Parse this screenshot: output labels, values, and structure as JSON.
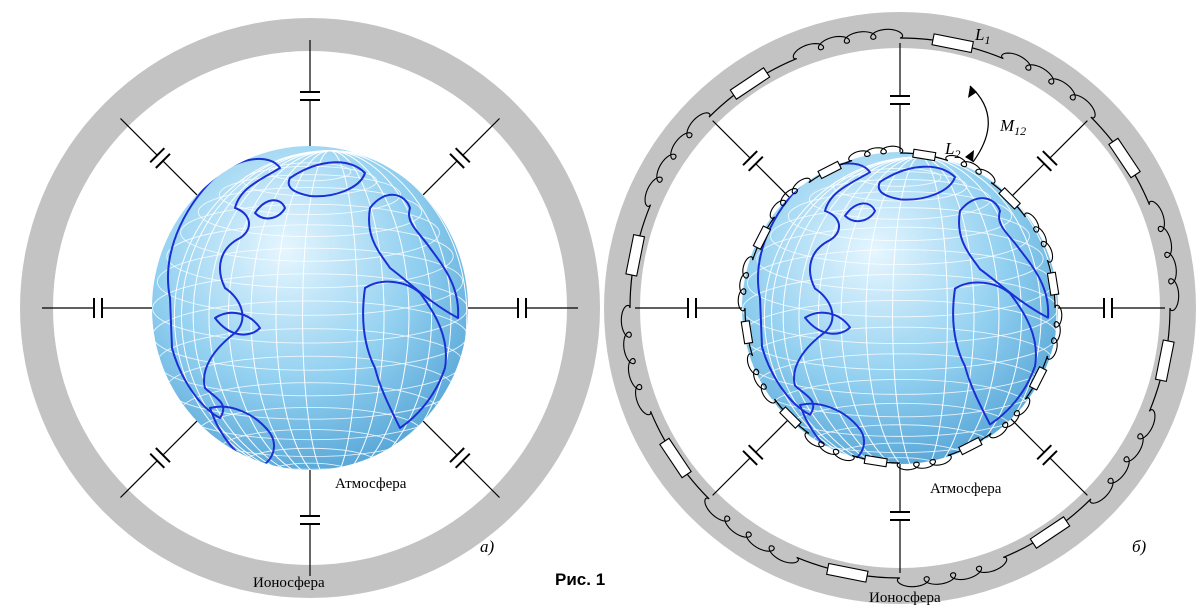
{
  "figure": {
    "caption": "Рис. 1"
  },
  "panel_a": {
    "tag": "а)",
    "label_atmosphere": "Атмосфера",
    "label_ionosphere": "Ионосфера"
  },
  "panel_b": {
    "tag": "б)",
    "label_atmosphere": "Атмосфера",
    "label_ionosphere": "Ионосфера",
    "inductor_outer": {
      "letter": "L",
      "index": "1"
    },
    "inductor_inner": {
      "letter": "L",
      "index": "2"
    },
    "mutual_inductance": {
      "letter": "M",
      "index": "12"
    }
  },
  "colors": {
    "ionosphere_shell": "#c3c3c3",
    "globe_light": "#e6f6ff",
    "globe_mid": "#92d0f0",
    "globe_dark": "#4fa0d4",
    "coastline": "#1a2fd6"
  }
}
